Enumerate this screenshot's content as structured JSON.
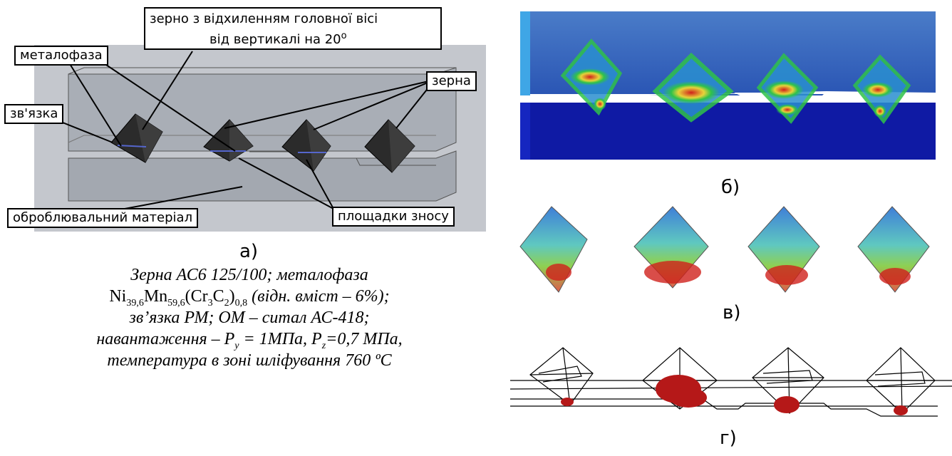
{
  "panel_a": {
    "letter": "а)",
    "labels": {
      "grain_tilt_line1": "зерно з відхиленням головної вісі",
      "grain_tilt_line2": "від  вертикалі на 20",
      "grain_tilt_sup": "o",
      "metal_phase": "металофаза",
      "grains": "зерна",
      "bond": "зв'язка",
      "workpiece": "оброблювальний матеріал",
      "wear_flats": "площадки зносу"
    }
  },
  "caption": {
    "l1": "Зерна АС6 125/100; металофаза",
    "l2_formula": {
      "ni": "Ni",
      "ni_sub": "39,6",
      "mn": "Mn",
      "mn_sub": "59,6",
      "cr_open": "(Cr",
      "cr_sub": "3",
      "c": "C",
      "c_sub": "2",
      "close": ")",
      "close_sub": "0,8"
    },
    "l2_rest": " (відн. вміст – 6%);",
    "l3": "зв’язка РМ;  ОМ – ситал АС-418;",
    "l4_a": "навантаження – P",
    "l4_a_sub": "y",
    "l4_b": " = 1МПа, P",
    "l4_b_sub": "z",
    "l4_c": "=0,7 МПа,",
    "l5": "температура в зоні шліфування 760 ºС"
  },
  "panel_b": {
    "letter": "б)"
  },
  "panel_c": {
    "letter": "в)"
  },
  "panel_d": {
    "letter": "г)"
  },
  "colors": {
    "bond_gray": "#9aa0a8",
    "grain_black": "#2a2a2a",
    "stress_low": "#1b2fb8",
    "stress_mid": "#2fc24a",
    "stress_high": "#d0201c",
    "wear_red": "#b51818"
  }
}
